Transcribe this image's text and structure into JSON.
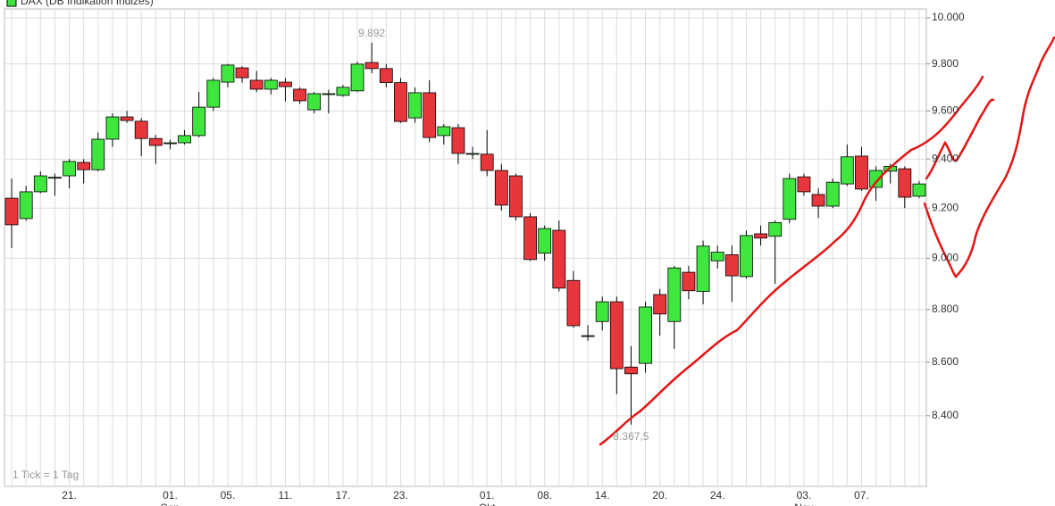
{
  "chart_data": {
    "type": "candlestick",
    "legend": "DAX (DB Indikation Indizes)",
    "note": "1 Tick = 1 Tag",
    "log_scale": true,
    "grid": true,
    "ylim": [
      8144,
      10039
    ],
    "yticks": [
      {
        "value": 8400,
        "label": "8.400"
      },
      {
        "value": 8600,
        "label": "8.600"
      },
      {
        "value": 8800,
        "label": "8.800"
      },
      {
        "value": 9000,
        "label": "9.000"
      },
      {
        "value": 9200,
        "label": "9.200"
      },
      {
        "value": 9400,
        "label": "9.400"
      },
      {
        "value": 9600,
        "label": "9.600"
      },
      {
        "value": 9800,
        "label": "9.800"
      },
      {
        "value": 10000,
        "label": "10.000"
      }
    ],
    "categories": [
      null,
      null,
      null,
      null,
      "21.",
      null,
      null,
      null,
      null,
      null,
      null,
      "01.",
      null,
      null,
      null,
      "05.",
      null,
      null,
      null,
      "11.",
      null,
      null,
      null,
      "17.",
      null,
      null,
      null,
      "23.",
      null,
      null,
      null,
      null,
      null,
      "01.",
      null,
      null,
      null,
      "08.",
      null,
      null,
      null,
      "14.",
      null,
      null,
      null,
      "20.",
      null,
      null,
      null,
      "24.",
      null,
      null,
      null,
      null,
      null,
      "03.",
      null,
      null,
      null,
      "07.",
      null,
      null,
      null,
      null
    ],
    "category_months": [
      null,
      null,
      null,
      null,
      null,
      null,
      null,
      null,
      null,
      null,
      null,
      "Sep",
      null,
      null,
      null,
      null,
      null,
      null,
      null,
      null,
      null,
      null,
      null,
      null,
      null,
      null,
      null,
      null,
      null,
      null,
      null,
      null,
      null,
      "Okt",
      null,
      null,
      null,
      null,
      null,
      null,
      null,
      null,
      null,
      null,
      null,
      null,
      null,
      null,
      null,
      null,
      null,
      null,
      null,
      null,
      null,
      "Nov",
      null,
      null,
      null,
      null,
      null,
      null,
      null,
      null
    ],
    "series": [
      {
        "name": "DAX (DB Indikation Indizes)",
        "up_color": "#3ee63e",
        "down_color": "#e8373c",
        "open": [
          9240,
          9158,
          9266,
          9325,
          9331,
          9386,
          9356,
          9482,
          9575,
          9557,
          9485,
          9467,
          9467,
          9497,
          9616,
          9722,
          9783,
          9730,
          9692,
          9722,
          9692,
          9605,
          9673,
          9666,
          9685,
          9806,
          9780,
          9720,
          9571,
          9677,
          9497,
          9530,
          9423,
          9420,
          9353,
          9331,
          9165,
          9020,
          9111,
          8913,
          8700,
          8754,
          8830,
          8581,
          8595,
          8858,
          8754,
          8945,
          8870,
          8990,
          9014,
          8928,
          9097,
          9087,
          9155,
          9327,
          9255,
          9208,
          9298,
          9412,
          9284,
          9350,
          9360,
          9248
        ],
        "high": [
          9320,
          9290,
          9350,
          9340,
          9400,
          9400,
          9510,
          9590,
          9600,
          9570,
          9500,
          9480,
          9520,
          9680,
          9740,
          9800,
          9790,
          9770,
          9740,
          9740,
          9700,
          9680,
          9690,
          9710,
          9810,
          9892,
          9800,
          9740,
          9700,
          9730,
          9545,
          9545,
          9450,
          9520,
          9380,
          9340,
          9180,
          9130,
          9150,
          8950,
          8740,
          8850,
          8850,
          8660,
          8830,
          8880,
          8970,
          8970,
          9070,
          9050,
          9050,
          9110,
          9130,
          9150,
          9340,
          9340,
          9280,
          9320,
          9460,
          9450,
          9370,
          9380,
          9370,
          9310
        ],
        "low": [
          9040,
          9150,
          9260,
          9250,
          9280,
          9300,
          9350,
          9450,
          9550,
          9412,
          9380,
          9440,
          9460,
          9490,
          9600,
          9700,
          9720,
          9680,
          9670,
          9640,
          9630,
          9590,
          9590,
          9660,
          9680,
          9760,
          9700,
          9550,
          9550,
          9470,
          9460,
          9380,
          9400,
          9330,
          9190,
          9150,
          8990,
          8990,
          8870,
          8730,
          8680,
          8720,
          8480,
          8367.5,
          8560,
          8700,
          8650,
          8840,
          8820,
          8960,
          8830,
          8920,
          9050,
          8900,
          9140,
          9250,
          9160,
          9200,
          9290,
          9270,
          9230,
          9300,
          9200,
          9240
        ],
        "close": [
          9133,
          9266,
          9331,
          9325,
          9390,
          9356,
          9482,
          9575,
          9560,
          9485,
          9456,
          9467,
          9497,
          9616,
          9730,
          9795,
          9741,
          9692,
          9730,
          9703,
          9643,
          9673,
          9673,
          9700,
          9799,
          9780,
          9720,
          9556,
          9677,
          9489,
          9534,
          9423,
          9423,
          9353,
          9212,
          9165,
          8995,
          9118,
          8883,
          8738,
          8700,
          8830,
          8575,
          8556,
          8810,
          8783,
          8962,
          8873,
          9048,
          9024,
          8931,
          9090,
          9080,
          9142,
          9320,
          9266,
          9208,
          9305,
          9409,
          9277,
          9353,
          9370,
          9244,
          9298
        ]
      }
    ],
    "annotations": [
      {
        "index": 25,
        "value": 9892,
        "label": "9.892"
      },
      {
        "index": 43,
        "value": 8367.5,
        "label": "8.367,5"
      }
    ]
  }
}
